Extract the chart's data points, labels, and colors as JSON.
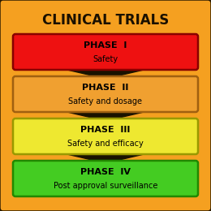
{
  "title": "CLINICAL TRIALS",
  "background_color": "#F5A020",
  "outer_border_color": "#2A1A00",
  "phases": [
    {
      "label": "PHASE  I",
      "sublabel": "Safety",
      "box_color": "#EE1111",
      "border_color": "#880000",
      "text_color": "#000000"
    },
    {
      "label": "PHASE  II",
      "sublabel": "Safety and dosage",
      "box_color": "#F0A030",
      "border_color": "#A06010",
      "text_color": "#000000"
    },
    {
      "label": "PHASE  III",
      "sublabel": "Safety and efficacy",
      "box_color": "#EEE830",
      "border_color": "#999900",
      "text_color": "#000000"
    },
    {
      "label": "PHASE  IV",
      "sublabel": "Post approval surveillance",
      "box_color": "#44CC22",
      "border_color": "#228800",
      "text_color": "#000000"
    }
  ],
  "figsize": [
    2.6,
    2.6
  ],
  "dpi": 100
}
